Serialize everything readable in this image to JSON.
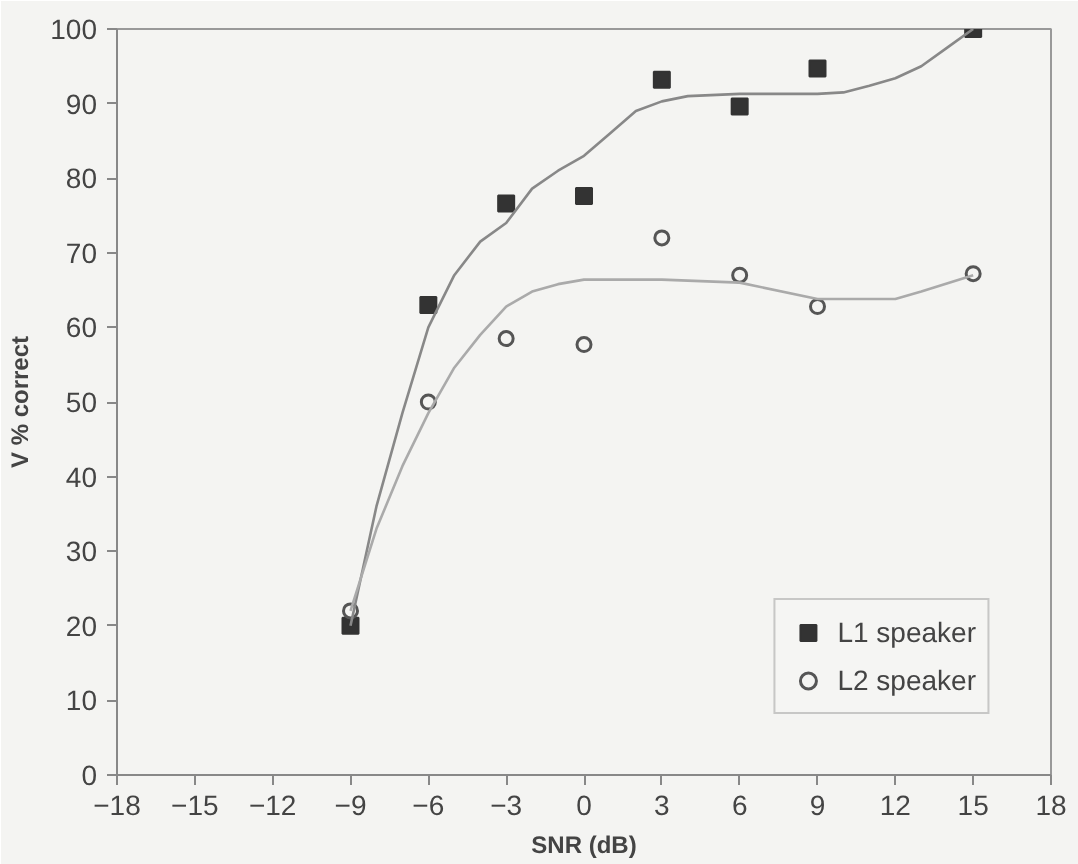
{
  "chart_data": {
    "type": "scatter",
    "xlabel": "SNR (dB)",
    "ylabel": "V % correct",
    "xlim": [
      -18,
      18
    ],
    "ylim": [
      0,
      100
    ],
    "xticks": [
      -18,
      -15,
      -12,
      -9,
      -6,
      -3,
      0,
      3,
      6,
      9,
      12,
      15,
      18
    ],
    "yticks": [
      0,
      10,
      20,
      30,
      40,
      50,
      60,
      70,
      80,
      90,
      100
    ],
    "grid": false,
    "legend": "bottom right",
    "series": [
      {
        "name": "L1 speaker",
        "color": "#333333",
        "marker": "square",
        "x": [
          -9,
          -6,
          -3,
          0,
          3,
          6,
          9,
          15
        ],
        "values": [
          20,
          63,
          76.6,
          77.6,
          93.2,
          89.6,
          94.7,
          100
        ]
      },
      {
        "name": "L2 speaker",
        "color": "#555555",
        "marker": "circle",
        "x": [
          -9,
          -6,
          -3,
          0,
          3,
          6,
          9,
          15
        ],
        "values": [
          22,
          50,
          58.5,
          57.7,
          72,
          67,
          62.8,
          67.2
        ]
      },
      {
        "type": "line",
        "color": "#888888",
        "x": [
          -9,
          -8,
          -7,
          -6,
          -5,
          -4,
          -3,
          -2,
          -1,
          0,
          1,
          2,
          3,
          4,
          6,
          9,
          10,
          11,
          12,
          13,
          14,
          15
        ],
        "values": [
          20,
          36,
          48.5,
          60,
          67,
          71.5,
          74,
          78.6,
          81,
          83,
          86,
          89,
          90.3,
          91,
          91.3,
          91.3,
          91.5,
          92.4,
          93.4,
          95,
          97.5,
          100
        ]
      },
      {
        "type": "line",
        "color": "#aaaaaa",
        "x": [
          -9,
          -8,
          -7,
          -6,
          -5,
          -4,
          -3,
          -2,
          -1,
          0,
          3,
          6,
          9,
          12,
          13,
          15
        ],
        "values": [
          22,
          33,
          41.4,
          48.5,
          54.6,
          59,
          62.8,
          64.8,
          65.8,
          66.4,
          66.4,
          66,
          63.8,
          63.8,
          64.8,
          67
        ]
      }
    ]
  }
}
